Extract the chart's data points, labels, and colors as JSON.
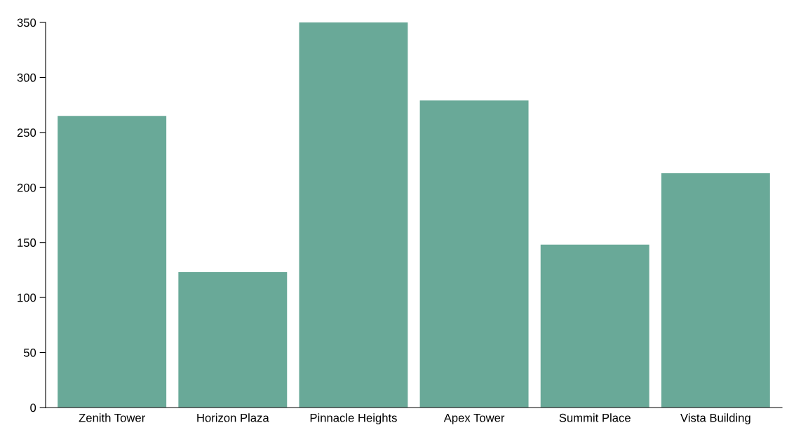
{
  "chart_data": {
    "type": "bar",
    "categories": [
      "Zenith Tower",
      "Horizon Plaza",
      "Pinnacle Heights",
      "Apex Tower",
      "Summit Place",
      "Vista Building"
    ],
    "values": [
      265,
      123,
      350,
      279,
      148,
      213
    ],
    "color": "#69a998",
    "ylim": [
      0,
      350
    ],
    "yticks": [
      0,
      50,
      100,
      150,
      200,
      250,
      300,
      350
    ],
    "grid": false,
    "legend": false
  }
}
